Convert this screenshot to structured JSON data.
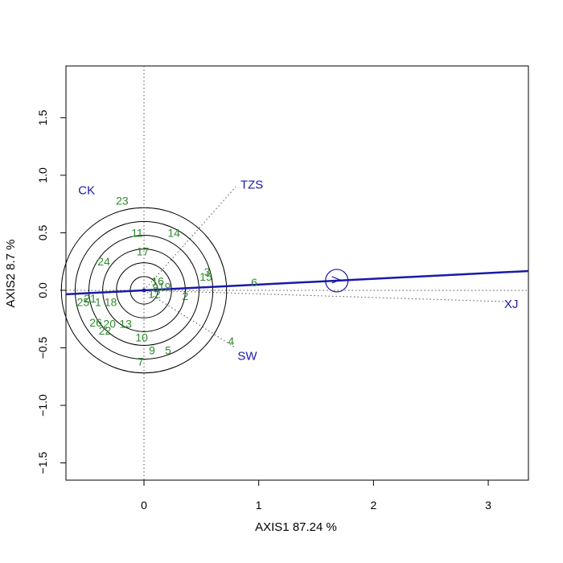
{
  "chart_data": {
    "type": "scatter",
    "title": "",
    "xlabel": "AXIS1 87.24 %",
    "ylabel": "AXIS2 8.7 %",
    "xlim": [
      -0.68,
      3.35
    ],
    "ylim": [
      -1.65,
      1.95
    ],
    "x_ticks": [
      0,
      1,
      2,
      3
    ],
    "y_ticks": [
      -1.5,
      -1.0,
      -0.5,
      0.0,
      0.5,
      1.0,
      1.5
    ],
    "x_tick_labels": [
      "0",
      "1",
      "2",
      "3"
    ],
    "y_tick_labels": [
      "−1.5",
      "−1.0",
      "−0.5",
      "0.0",
      "0.5",
      "1.0",
      "1.5"
    ],
    "grid": false,
    "genotypes": [
      {
        "label": "1",
        "x": -0.4,
        "y": -0.1
      },
      {
        "label": "2",
        "x": 0.36,
        "y": -0.05
      },
      {
        "label": "3",
        "x": 0.55,
        "y": 0.16
      },
      {
        "label": "4",
        "x": 0.76,
        "y": -0.44
      },
      {
        "label": "5",
        "x": 0.21,
        "y": -0.52
      },
      {
        "label": "6",
        "x": 0.96,
        "y": 0.07
      },
      {
        "label": "7",
        "x": -0.03,
        "y": -0.62
      },
      {
        "label": "8",
        "x": 0.1,
        "y": 0.02
      },
      {
        "label": "9",
        "x": 0.07,
        "y": -0.52
      },
      {
        "label": "10",
        "x": -0.02,
        "y": -0.41
      },
      {
        "label": "11",
        "x": -0.06,
        "y": 0.5
      },
      {
        "label": "12",
        "x": 0.09,
        "y": -0.03
      },
      {
        "label": "13",
        "x": -0.16,
        "y": -0.29
      },
      {
        "label": "14",
        "x": 0.26,
        "y": 0.5
      },
      {
        "label": "15",
        "x": 0.54,
        "y": 0.12
      },
      {
        "label": "16",
        "x": 0.12,
        "y": 0.08
      },
      {
        "label": "17",
        "x": -0.01,
        "y": 0.34
      },
      {
        "label": "18",
        "x": -0.29,
        "y": -0.1
      },
      {
        "label": "19",
        "x": 0.18,
        "y": 0.03
      },
      {
        "label": "20",
        "x": -0.3,
        "y": -0.29
      },
      {
        "label": "21",
        "x": -0.47,
        "y": -0.07
      },
      {
        "label": "22",
        "x": -0.34,
        "y": -0.35
      },
      {
        "label": "23",
        "x": -0.19,
        "y": 0.78
      },
      {
        "label": "24",
        "x": -0.35,
        "y": 0.25
      },
      {
        "label": "25",
        "x": -0.53,
        "y": -0.1
      },
      {
        "label": "26",
        "x": -0.42,
        "y": -0.28
      }
    ],
    "environments": [
      {
        "label": "CK",
        "x": -0.5,
        "y": 0.87
      },
      {
        "label": "TZS",
        "x": 0.94,
        "y": 0.92
      },
      {
        "label": "SW",
        "x": 0.9,
        "y": -0.57
      },
      {
        "label": "XJ",
        "x": 3.2,
        "y": -0.12
      }
    ],
    "aea": {
      "intercept": 0.0,
      "slope": 0.05,
      "marker_x": 1.68,
      "marker_y": 0.084,
      "concentric_radii": [
        0.12,
        0.24,
        0.36,
        0.48,
        0.6,
        0.72
      ],
      "env_vector_endpoints": [
        {
          "x": 0.8,
          "y": 0.9
        },
        {
          "x": 0.8,
          "y": -0.5
        },
        {
          "x": 3.2,
          "y": -0.1
        }
      ]
    },
    "colors": {
      "genotype": "#2e8b2e",
      "environment": "#1a1aa6",
      "aea_line": "#1a1aa6",
      "circles": "#000000",
      "reference": "#555555"
    }
  }
}
